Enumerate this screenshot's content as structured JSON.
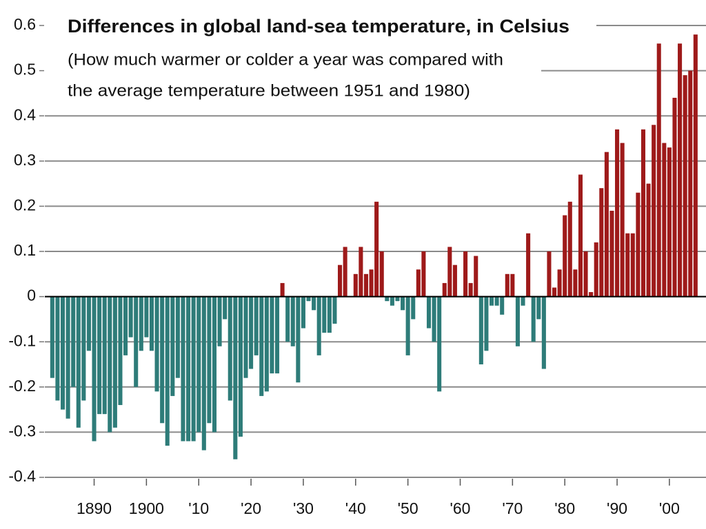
{
  "chart_data": {
    "type": "bar",
    "title": "Differences in global land-sea temperature, in Celsius",
    "subtitle": [
      "(How much warmer or colder a year was compared with",
      "the average temperature between 1951 and 1980)"
    ],
    "x": [
      1882,
      1883,
      1884,
      1885,
      1886,
      1887,
      1888,
      1889,
      1890,
      1891,
      1892,
      1893,
      1894,
      1895,
      1896,
      1897,
      1898,
      1899,
      1900,
      1901,
      1902,
      1903,
      1904,
      1905,
      1906,
      1907,
      1908,
      1909,
      1910,
      1911,
      1912,
      1913,
      1914,
      1915,
      1916,
      1917,
      1918,
      1919,
      1920,
      1921,
      1922,
      1923,
      1924,
      1925,
      1926,
      1927,
      1928,
      1929,
      1930,
      1931,
      1932,
      1933,
      1934,
      1935,
      1936,
      1937,
      1938,
      1939,
      1940,
      1941,
      1942,
      1943,
      1944,
      1945,
      1946,
      1947,
      1948,
      1949,
      1950,
      1951,
      1952,
      1953,
      1954,
      1955,
      1956,
      1957,
      1958,
      1959,
      1960,
      1961,
      1962,
      1963,
      1964,
      1965,
      1966,
      1967,
      1968,
      1969,
      1970,
      1971,
      1972,
      1973,
      1974,
      1975,
      1976,
      1977,
      1978,
      1979,
      1980,
      1981,
      1982,
      1983,
      1984,
      1985,
      1986,
      1987,
      1988,
      1989,
      1990,
      1991,
      1992,
      1993,
      1994,
      1995,
      1996,
      1997,
      1998,
      1999,
      2000,
      2001,
      2002,
      2003,
      2004,
      2005
    ],
    "values": [
      -0.18,
      -0.23,
      -0.25,
      -0.27,
      -0.2,
      -0.29,
      -0.23,
      -0.12,
      -0.32,
      -0.26,
      -0.26,
      -0.3,
      -0.29,
      -0.24,
      -0.13,
      -0.09,
      -0.2,
      -0.12,
      -0.09,
      -0.12,
      -0.21,
      -0.28,
      -0.33,
      -0.22,
      -0.18,
      -0.32,
      -0.32,
      -0.32,
      -0.3,
      -0.34,
      -0.28,
      -0.3,
      -0.11,
      -0.05,
      -0.23,
      -0.36,
      -0.31,
      -0.18,
      -0.16,
      -0.13,
      -0.22,
      -0.21,
      -0.17,
      -0.17,
      0.03,
      -0.1,
      -0.11,
      -0.19,
      -0.07,
      -0.01,
      -0.03,
      -0.13,
      -0.08,
      -0.08,
      -0.06,
      0.07,
      0.11,
      0.0,
      0.05,
      0.11,
      0.05,
      0.06,
      0.21,
      0.1,
      -0.01,
      -0.02,
      -0.01,
      -0.03,
      -0.13,
      -0.05,
      0.06,
      0.1,
      -0.07,
      -0.1,
      -0.21,
      0.03,
      0.11,
      0.07,
      0.0,
      0.1,
      0.03,
      0.09,
      -0.15,
      -0.12,
      -0.02,
      -0.02,
      -0.04,
      0.05,
      0.05,
      -0.11,
      -0.02,
      0.14,
      -0.1,
      -0.05,
      -0.16,
      0.1,
      0.02,
      0.06,
      0.18,
      0.21,
      0.06,
      0.27,
      0.1,
      0.01,
      0.12,
      0.24,
      0.32,
      0.19,
      0.37,
      0.34,
      0.14,
      0.14,
      0.23,
      0.37,
      0.25,
      0.38,
      0.56,
      0.34,
      0.33,
      0.44,
      0.56,
      0.49,
      0.5,
      0.58
    ],
    "positive_color": "#9e1a1a",
    "negative_color": "#2e7c79",
    "xlim": [
      1872,
      2007
    ],
    "xticks": [
      1890,
      1900,
      {
        "value": 1910,
        "label": "'10"
      },
      {
        "value": 1920,
        "label": "'20"
      },
      {
        "value": 1930,
        "label": "'30"
      },
      {
        "value": 1940,
        "label": "'40"
      },
      {
        "value": 1950,
        "label": "'50"
      },
      {
        "value": 1960,
        "label": "'60"
      },
      {
        "value": 1970,
        "label": "'70"
      },
      {
        "value": 1980,
        "label": "'80"
      },
      {
        "value": 1990,
        "label": "'90"
      },
      {
        "value": 2000,
        "label": "'00"
      }
    ],
    "ylim": [
      -0.4,
      0.6
    ],
    "yticks": [
      -0.4,
      -0.3,
      -0.2,
      -0.1,
      0,
      0.1,
      0.2,
      0.3,
      0.4,
      0.5,
      0.6
    ],
    "grid": true
  }
}
